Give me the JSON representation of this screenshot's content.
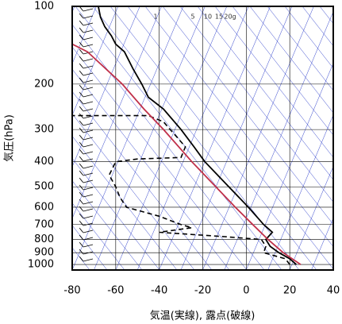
{
  "chart_data": {
    "type": "sounding",
    "xlabel": "気温(実線), 露点(破線)",
    "ylabel": "気圧(hPa)",
    "xlim": [
      -80,
      40
    ],
    "xticks": [
      -80,
      -60,
      -40,
      -20,
      0,
      20,
      40
    ],
    "ylim": [
      1050,
      100
    ],
    "yticks": [
      100,
      200,
      300,
      400,
      500,
      600,
      700,
      800,
      900,
      1000
    ],
    "log_y": true,
    "mixing_ratio_labels": [
      "1",
      "5",
      "10",
      "15",
      "20g"
    ],
    "series": [
      {
        "color": "#000000",
        "dash": false,
        "pressure": [
          1000,
          950,
          900,
          850,
          800,
          750,
          700,
          600,
          500,
          400,
          350,
          300,
          250,
          225,
          200,
          175,
          150,
          140,
          130,
          120,
          110,
          100
        ],
        "values": [
          23,
          20,
          15,
          11,
          9,
          12,
          8,
          1,
          -8,
          -19,
          -24,
          -30,
          -38,
          -45,
          -48,
          -52,
          -56,
          -60,
          -62,
          -65,
          -67,
          -68
        ]
      },
      {
        "color": "#000000",
        "dash": true,
        "pressure": [
          1000,
          950,
          900,
          850,
          800,
          780,
          750,
          720,
          700,
          650,
          600,
          550,
          500,
          450,
          400,
          390,
          385,
          350,
          320,
          300,
          280,
          265,
          265
        ],
        "values": [
          20,
          18,
          8,
          9,
          7,
          -10,
          -40,
          -25,
          -30,
          -40,
          -55,
          -58,
          -60,
          -63,
          -60,
          -50,
          -30,
          -28,
          -32,
          -35,
          -38,
          -45,
          -80
        ]
      },
      {
        "color": "#c0304a",
        "dash": false,
        "pressure": [
          1000,
          900,
          800,
          700,
          600,
          500,
          400,
          300,
          250,
          200,
          150,
          140
        ],
        "values": [
          25,
          17,
          10,
          3,
          -5,
          -14,
          -25,
          -38,
          -47,
          -57,
          -73,
          -80
        ]
      }
    ]
  }
}
